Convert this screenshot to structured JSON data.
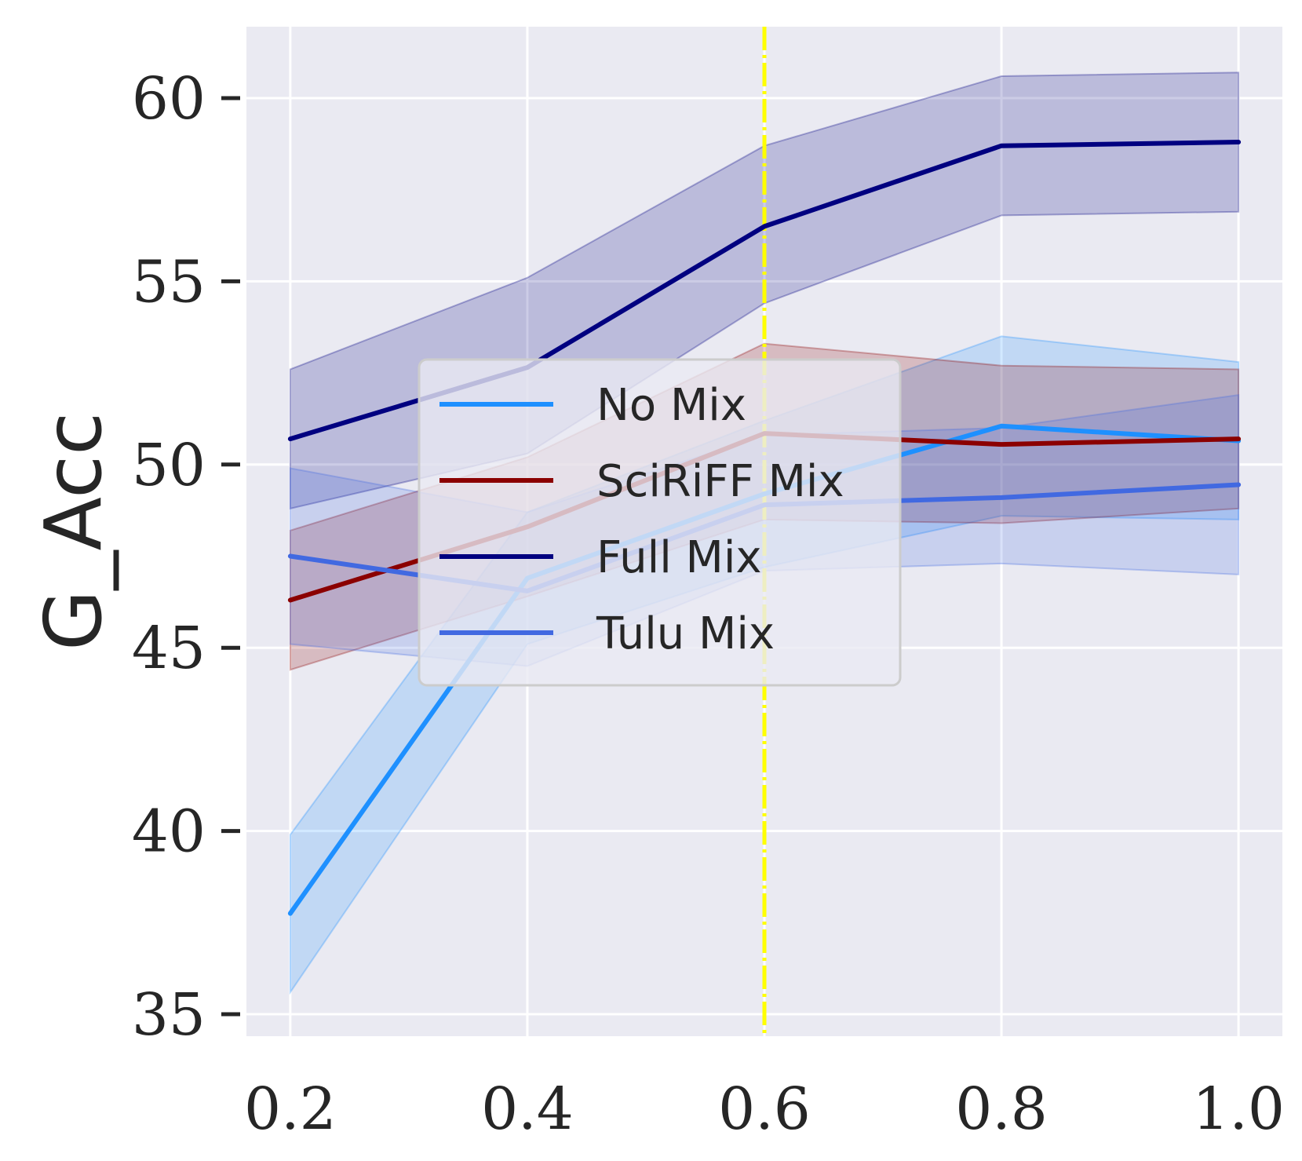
{
  "chart_data": {
    "type": "line",
    "title": "",
    "xlabel": "",
    "ylabel": "G_Acc",
    "x": [
      0.2,
      0.4,
      0.6,
      0.8,
      1.0
    ],
    "x_tick_labels": [
      "0.2",
      "0.4",
      "0.6",
      "0.8",
      "1.0"
    ],
    "y_ticks": [
      35,
      40,
      45,
      50,
      55,
      60
    ],
    "y_tick_labels": [
      "35",
      "40",
      "45",
      "50",
      "55",
      "60"
    ],
    "xlim": [
      0.163,
      1.037
    ],
    "ylim": [
      34.4,
      61.95
    ],
    "grid": true,
    "legend_position": "center",
    "reference_line": {
      "x": 0.6,
      "color": "#ffff00",
      "style": "dash-dot"
    },
    "series": [
      {
        "name": "No Mix",
        "color": "#1e90ff",
        "values": [
          37.75,
          46.9,
          49.2,
          51.05,
          50.65
        ],
        "lower": [
          35.6,
          45.1,
          47.2,
          48.6,
          48.5
        ],
        "upper": [
          39.9,
          48.7,
          51.2,
          53.5,
          52.8
        ]
      },
      {
        "name": "SciRiFF Mix",
        "color": "#8b0000",
        "values": [
          46.3,
          48.3,
          50.85,
          50.55,
          50.7
        ],
        "lower": [
          44.4,
          46.4,
          48.5,
          48.4,
          48.8
        ],
        "upper": [
          48.2,
          50.2,
          53.3,
          52.7,
          52.6
        ]
      },
      {
        "name": "Full Mix",
        "color": "#000080",
        "values": [
          50.7,
          52.65,
          56.5,
          58.7,
          58.8
        ],
        "lower": [
          48.8,
          50.3,
          54.4,
          56.8,
          56.9
        ],
        "upper": [
          52.6,
          55.1,
          58.7,
          60.6,
          60.7
        ]
      },
      {
        "name": "Tulu Mix",
        "color": "#4169e1",
        "values": [
          47.5,
          46.55,
          48.9,
          49.1,
          49.45
        ],
        "lower": [
          45.1,
          44.5,
          47.1,
          47.3,
          47.0
        ],
        "upper": [
          49.9,
          48.7,
          50.8,
          51.0,
          51.9
        ]
      }
    ]
  }
}
